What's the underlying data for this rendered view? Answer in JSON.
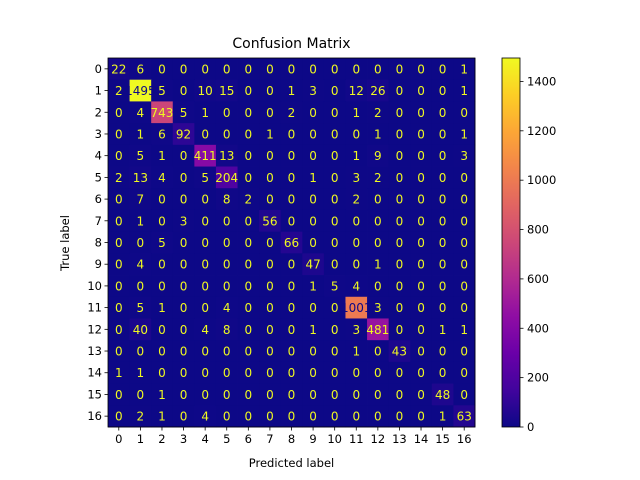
{
  "chart_data": {
    "type": "heatmap",
    "title": "Confusion Matrix",
    "xlabel": "Predicted label",
    "ylabel": "True label",
    "x_categories": [
      "0",
      "1",
      "2",
      "3",
      "4",
      "5",
      "6",
      "7",
      "8",
      "9",
      "10",
      "11",
      "12",
      "13",
      "14",
      "15",
      "16"
    ],
    "y_categories": [
      "0",
      "1",
      "2",
      "3",
      "4",
      "5",
      "6",
      "7",
      "8",
      "9",
      "10",
      "11",
      "12",
      "13",
      "14",
      "15",
      "16"
    ],
    "values": [
      [
        22,
        6,
        0,
        0,
        0,
        0,
        0,
        0,
        0,
        0,
        0,
        0,
        0,
        0,
        0,
        0,
        1
      ],
      [
        2,
        1495,
        5,
        0,
        10,
        15,
        0,
        0,
        1,
        3,
        0,
        12,
        26,
        0,
        0,
        0,
        1
      ],
      [
        0,
        4,
        743,
        5,
        1,
        0,
        0,
        0,
        2,
        0,
        0,
        1,
        2,
        0,
        0,
        0,
        0
      ],
      [
        0,
        1,
        6,
        92,
        0,
        0,
        0,
        1,
        0,
        0,
        0,
        0,
        1,
        0,
        0,
        0,
        1
      ],
      [
        0,
        5,
        1,
        0,
        411,
        13,
        0,
        0,
        0,
        0,
        0,
        1,
        9,
        0,
        0,
        0,
        3
      ],
      [
        2,
        13,
        4,
        0,
        5,
        204,
        0,
        0,
        0,
        1,
        0,
        3,
        2,
        0,
        0,
        0,
        0
      ],
      [
        0,
        7,
        0,
        0,
        0,
        8,
        2,
        0,
        0,
        0,
        0,
        2,
        0,
        0,
        0,
        0,
        0
      ],
      [
        0,
        1,
        0,
        3,
        0,
        0,
        0,
        56,
        0,
        0,
        0,
        0,
        0,
        0,
        0,
        0,
        0
      ],
      [
        0,
        0,
        5,
        0,
        0,
        0,
        0,
        0,
        66,
        0,
        0,
        0,
        0,
        0,
        0,
        0,
        0
      ],
      [
        0,
        4,
        0,
        0,
        0,
        0,
        0,
        0,
        0,
        47,
        0,
        0,
        1,
        0,
        0,
        0,
        0
      ],
      [
        0,
        0,
        0,
        0,
        0,
        0,
        0,
        0,
        0,
        1,
        5,
        4,
        0,
        0,
        0,
        0,
        0
      ],
      [
        0,
        5,
        1,
        0,
        0,
        4,
        0,
        0,
        0,
        0,
        0,
        1001,
        3,
        0,
        0,
        0,
        0
      ],
      [
        0,
        40,
        0,
        0,
        4,
        8,
        0,
        0,
        0,
        1,
        0,
        3,
        481,
        0,
        0,
        1,
        1
      ],
      [
        0,
        0,
        0,
        0,
        0,
        0,
        0,
        0,
        0,
        0,
        0,
        1,
        0,
        43,
        0,
        0,
        0
      ],
      [
        1,
        1,
        0,
        0,
        0,
        0,
        0,
        0,
        0,
        0,
        0,
        0,
        0,
        0,
        0,
        0,
        0
      ],
      [
        0,
        0,
        1,
        0,
        0,
        0,
        0,
        0,
        0,
        0,
        0,
        0,
        0,
        0,
        0,
        48,
        0
      ],
      [
        0,
        2,
        1,
        0,
        4,
        0,
        0,
        0,
        0,
        0,
        0,
        0,
        0,
        0,
        0,
        1,
        63
      ]
    ],
    "colormap": "plasma",
    "color_range": [
      0,
      1495
    ],
    "colorbar_ticks": [
      0,
      200,
      400,
      600,
      800,
      1000,
      1200,
      1400
    ],
    "grid": false
  }
}
